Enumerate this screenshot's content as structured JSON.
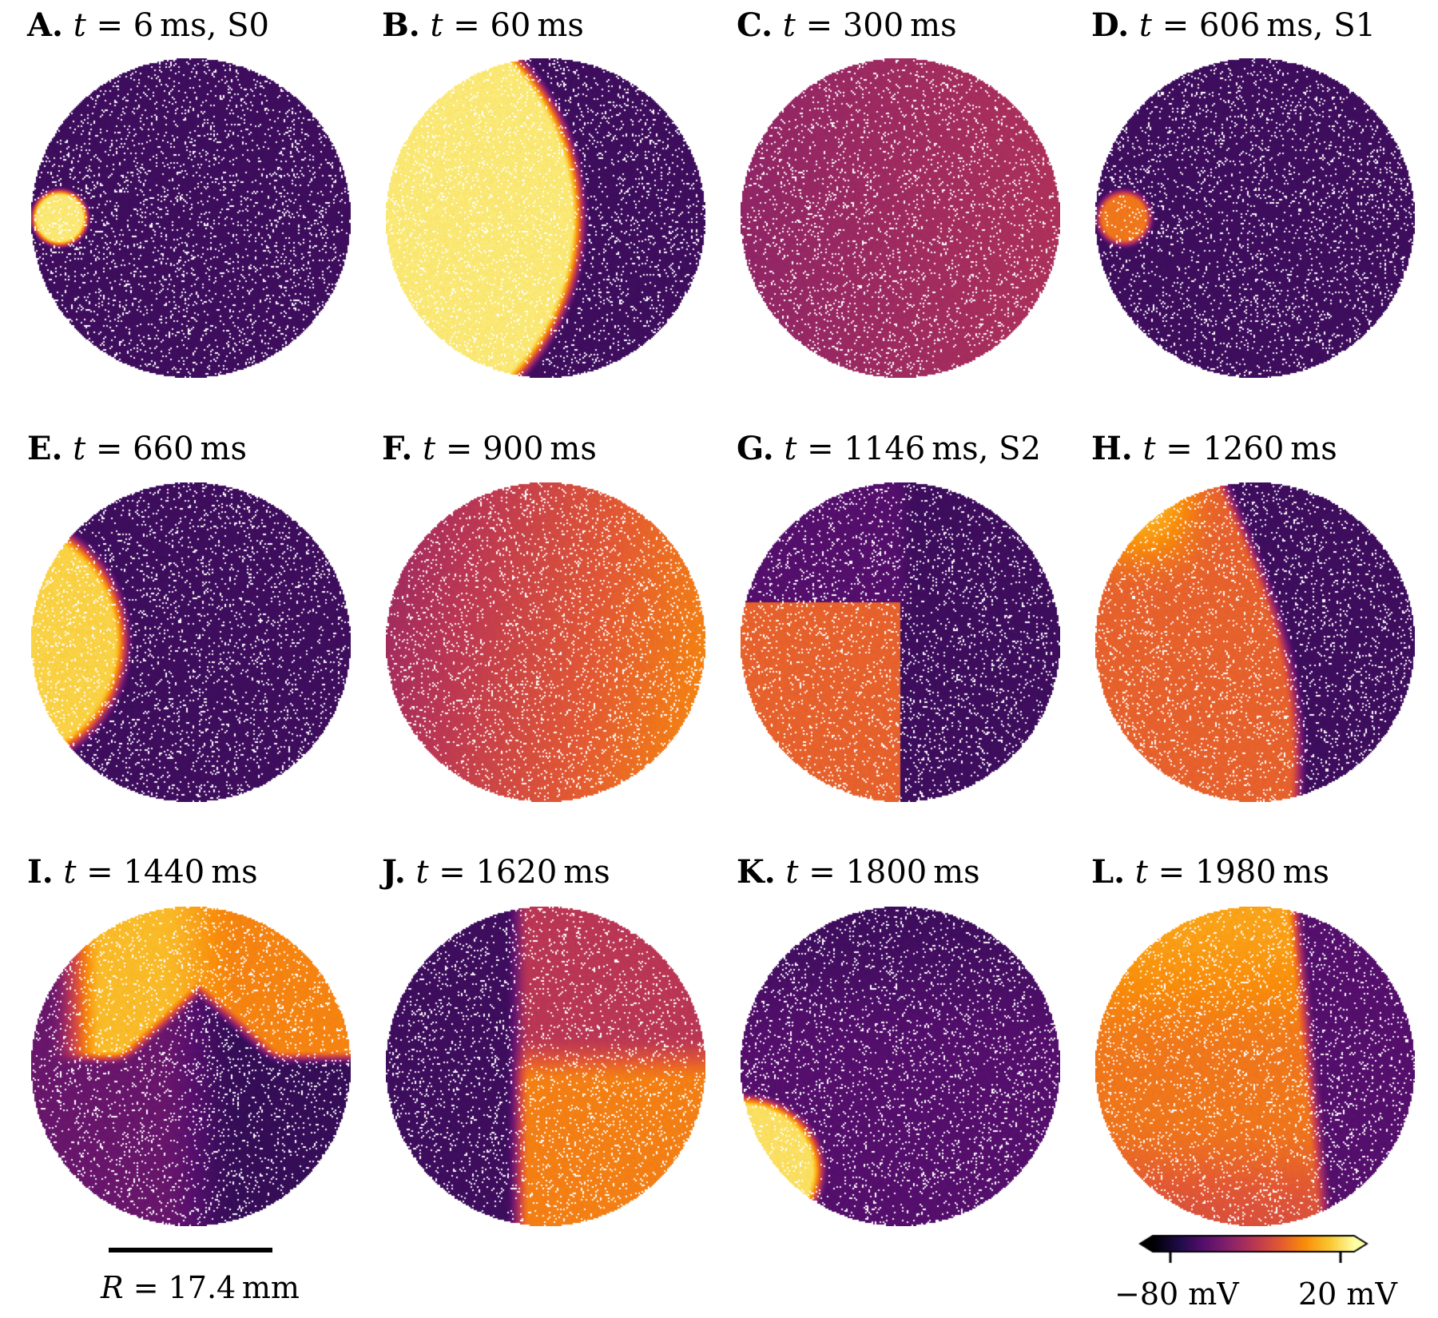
{
  "panels": [
    {
      "letter": "A.",
      "time": "6",
      "unit": "ms",
      "suffix": ", S0"
    },
    {
      "letter": "B.",
      "time": "60",
      "unit": "ms",
      "suffix": ""
    },
    {
      "letter": "C.",
      "time": "300",
      "unit": "ms",
      "suffix": ""
    },
    {
      "letter": "D.",
      "time": "606",
      "unit": "ms",
      "suffix": ", S1"
    },
    {
      "letter": "E.",
      "time": "660",
      "unit": "ms",
      "suffix": ""
    },
    {
      "letter": "F.",
      "time": "900",
      "unit": "ms",
      "suffix": ""
    },
    {
      "letter": "G.",
      "time": "1146",
      "unit": "ms",
      "suffix": ", S2"
    },
    {
      "letter": "H.",
      "time": "1260",
      "unit": "ms",
      "suffix": ""
    },
    {
      "letter": "I.",
      "time": "1440",
      "unit": "ms",
      "suffix": ""
    },
    {
      "letter": "J.",
      "time": "1620",
      "unit": "ms",
      "suffix": ""
    },
    {
      "letter": "K.",
      "time": "1800",
      "unit": "ms",
      "suffix": ""
    },
    {
      "letter": "L.",
      "time": "1980",
      "unit": "ms",
      "suffix": ""
    }
  ],
  "variable": "t",
  "scale_bar": {
    "symbol": "R",
    "value": "17.4",
    "unit": "mm"
  },
  "colorbar": {
    "colormap": "inferno",
    "min_label": "−80 mV",
    "max_label": "20 mV",
    "extend": "both"
  }
}
